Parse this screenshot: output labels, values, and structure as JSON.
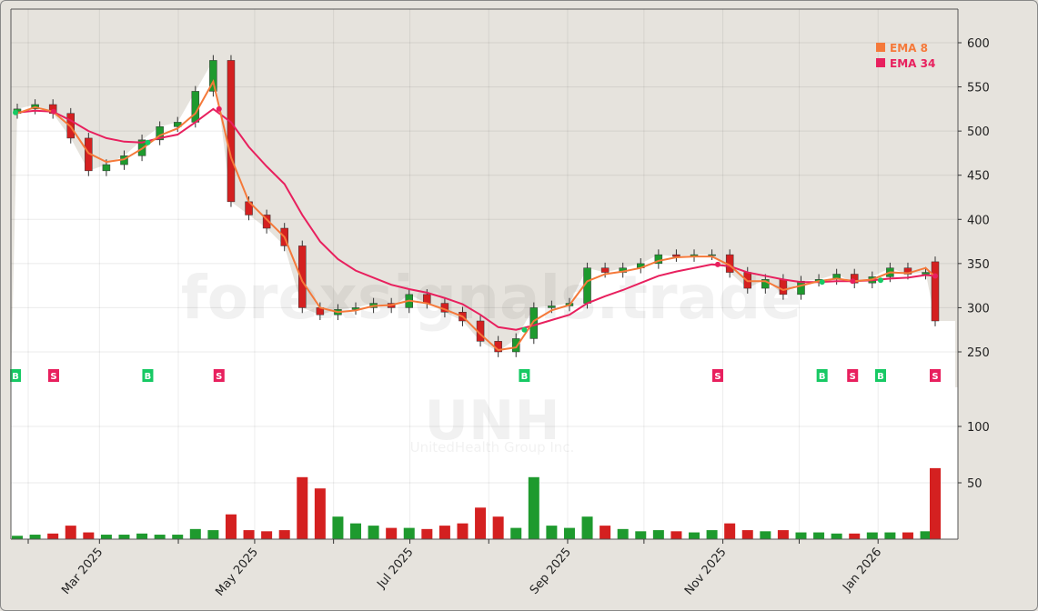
{
  "chart_data": {
    "type": "candlestick",
    "ticker_watermark": "UNH",
    "company_watermark": "UnitedHealth Group Inc.",
    "site_watermark": "forexsignals.trade",
    "interval": "weekly",
    "price_ylim": [
      215,
      637
    ],
    "price_ticks": [
      250,
      300,
      350,
      400,
      450,
      500,
      550,
      600
    ],
    "volume_ylim": [
      0,
      122
    ],
    "volume_ticks": [
      50,
      100
    ],
    "volume_unit": "M",
    "x_tick_labels": [
      "Mar 2025",
      "May 2025",
      "Jul 2025",
      "Sep 2025",
      "Nov 2025",
      "Jan 2026"
    ],
    "x_tick_dates": [
      "2025-03-01",
      "2025-05-01",
      "2025-07-01",
      "2025-09-01",
      "2025-11-01",
      "2026-01-01"
    ],
    "x_minor_tick_dates": [
      "2025-02-01",
      "2025-04-01",
      "2025-06-01",
      "2025-08-01",
      "2025-10-01",
      "2025-12-01"
    ],
    "grid": true,
    "legend_position": "top-right",
    "legend": [
      {
        "name": "EMA 8",
        "color": "#f5793a"
      },
      {
        "name": "EMA 34",
        "color": "#e8205e"
      }
    ],
    "colors": {
      "up": "#1e9a2e",
      "down": "#d42020",
      "buy": "#17c964",
      "sell": "#e8205e"
    },
    "start_date": "2025-01-27",
    "closes": [
      525,
      530,
      520,
      492,
      455,
      462,
      472,
      490,
      505,
      510,
      545,
      580,
      420,
      405,
      390,
      370,
      300,
      292,
      298,
      300,
      305,
      300,
      315,
      305,
      295,
      285,
      262,
      250,
      265,
      300,
      302,
      305,
      345,
      340,
      345,
      350,
      360,
      358,
      360,
      360,
      340,
      322,
      332,
      315,
      330,
      332,
      338,
      328,
      335,
      345,
      338,
      340,
      285
    ],
    "first_open": 520,
    "last_open": 352,
    "volume": [
      3,
      4,
      5,
      12,
      6,
      4,
      4,
      5,
      4,
      4,
      9,
      8,
      22,
      8,
      7,
      8,
      55,
      45,
      20,
      14,
      12,
      10,
      10,
      9,
      12,
      14,
      28,
      20,
      10,
      55,
      12,
      10,
      20,
      12,
      9,
      7,
      8,
      7,
      6,
      8,
      14,
      8,
      7,
      8,
      6,
      6,
      5,
      5,
      6,
      6,
      6,
      7,
      63
    ],
    "ema8": [
      520,
      527,
      522,
      505,
      475,
      465,
      468,
      480,
      495,
      503,
      520,
      556,
      470,
      420,
      400,
      380,
      330,
      300,
      295,
      297,
      302,
      303,
      308,
      305,
      298,
      290,
      270,
      252,
      255,
      285,
      297,
      303,
      330,
      338,
      341,
      345,
      353,
      357,
      358,
      358,
      348,
      330,
      330,
      320,
      325,
      330,
      333,
      330,
      332,
      340,
      339,
      345,
      335
    ],
    "ema34": [
      521,
      523,
      522,
      512,
      500,
      492,
      488,
      487,
      492,
      496,
      510,
      525,
      510,
      482,
      460,
      440,
      405,
      375,
      355,
      342,
      334,
      326,
      321,
      317,
      311,
      304,
      292,
      278,
      275,
      280,
      286,
      292,
      305,
      313,
      320,
      328,
      336,
      341,
      345,
      349,
      347,
      340,
      336,
      332,
      329,
      329,
      330,
      330,
      331,
      333,
      334,
      337,
      336
    ],
    "signals": [
      {
        "date": "2025-01-27",
        "type": "B"
      },
      {
        "date": "2025-02-11",
        "type": "S"
      },
      {
        "date": "2025-03-20",
        "type": "B"
      },
      {
        "date": "2025-04-17",
        "type": "S"
      },
      {
        "date": "2025-08-15",
        "type": "B"
      },
      {
        "date": "2025-10-30",
        "type": "S"
      },
      {
        "date": "2025-12-10",
        "type": "B"
      },
      {
        "date": "2025-12-22",
        "type": "S"
      },
      {
        "date": "2026-01-02",
        "type": "B"
      },
      {
        "date": "2026-01-27",
        "type": "S"
      }
    ]
  }
}
